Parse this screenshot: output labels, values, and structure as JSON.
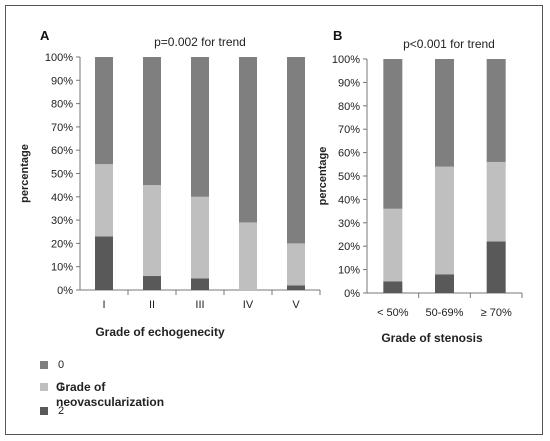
{
  "chart_data": [
    {
      "type": "bar",
      "stacked": true,
      "percent": true,
      "panel": "A",
      "title": "p=0.002 for trend",
      "xlabel": "Grade of echogenecity",
      "ylabel": "percentage",
      "categories": [
        "I",
        "II",
        "III",
        "IV",
        "V"
      ],
      "ylim": [
        0,
        100
      ],
      "yticks": [
        "0%",
        "10%",
        "20%",
        "30%",
        "40%",
        "50%",
        "60%",
        "70%",
        "80%",
        "90%",
        "100%"
      ],
      "series": [
        {
          "name": "2",
          "color": "#595959",
          "values": [
            23,
            6,
            5,
            0,
            2
          ]
        },
        {
          "name": "1",
          "color": "#bfbfbf",
          "values": [
            31,
            39,
            35,
            29,
            18
          ]
        },
        {
          "name": "0",
          "color": "#7f7f7f",
          "values": [
            46,
            55,
            60,
            71,
            80
          ]
        }
      ]
    },
    {
      "type": "bar",
      "stacked": true,
      "percent": true,
      "panel": "B",
      "title": "p<0.001 for trend",
      "xlabel": "Grade of stenosis",
      "ylabel": "percentage",
      "categories": [
        "< 50%",
        "50-69%",
        "≥ 70%"
      ],
      "ylim": [
        0,
        100
      ],
      "yticks": [
        "0%",
        "10%",
        "20%",
        "30%",
        "40%",
        "50%",
        "60%",
        "70%",
        "80%",
        "90%",
        "100%"
      ],
      "series": [
        {
          "name": "2",
          "color": "#595959",
          "values": [
            5,
            8,
            22
          ]
        },
        {
          "name": "1",
          "color": "#bfbfbf",
          "values": [
            31,
            46,
            34
          ]
        },
        {
          "name": "0",
          "color": "#7f7f7f",
          "values": [
            64,
            46,
            44
          ]
        }
      ]
    }
  ],
  "legend": {
    "title": "Grade of neovascularization",
    "items": [
      {
        "label": "0",
        "color": "#7f7f7f"
      },
      {
        "label": "1",
        "color": "#bfbfbf"
      },
      {
        "label": "2",
        "color": "#595959"
      }
    ]
  }
}
